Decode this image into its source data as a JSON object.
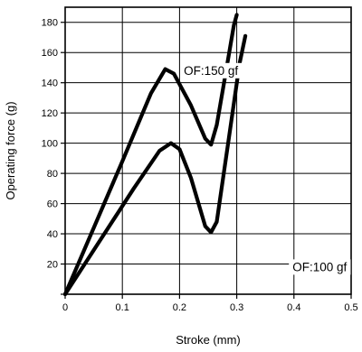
{
  "chart_data": {
    "type": "line",
    "xlabel": "Stroke (mm)",
    "ylabel": "Operating force (g)",
    "xlim": [
      0,
      0.5
    ],
    "ylim": [
      0,
      190
    ],
    "x_ticks": [
      0,
      0.1,
      0.2,
      0.3,
      0.4,
      0.5
    ],
    "x_tick_labels": [
      "0",
      "0.1",
      "0.2",
      "0.3",
      "0.4",
      "0.5"
    ],
    "y_ticks": [
      0,
      20,
      40,
      60,
      80,
      100,
      120,
      140,
      160,
      180
    ],
    "y_tick_labels": [
      "",
      "20",
      "40",
      "60",
      "80",
      "100",
      "120",
      "140",
      "160",
      "180"
    ],
    "grid": true,
    "series": [
      {
        "x": [
          0,
          0.05,
          0.1,
          0.15,
          0.175,
          0.19,
          0.22,
          0.245,
          0.255,
          0.265,
          0.28,
          0.295,
          0.3
        ],
        "y": [
          0,
          44,
          88,
          133,
          149,
          146,
          125,
          103,
          99,
          112,
          145,
          178,
          185
        ]
      },
      {
        "x": [
          0,
          0.06,
          0.12,
          0.165,
          0.185,
          0.2,
          0.22,
          0.245,
          0.255,
          0.265,
          0.285,
          0.305,
          0.315
        ],
        "y": [
          0,
          35,
          70,
          95,
          100,
          96,
          77,
          45,
          41,
          48,
          100,
          153,
          171
        ]
      }
    ],
    "annotations": [
      {
        "text": "OF:150 gf",
        "x": 0.255,
        "y": 148
      },
      {
        "text": "OF:100 gf",
        "x": 0.445,
        "y": 18
      }
    ]
  }
}
